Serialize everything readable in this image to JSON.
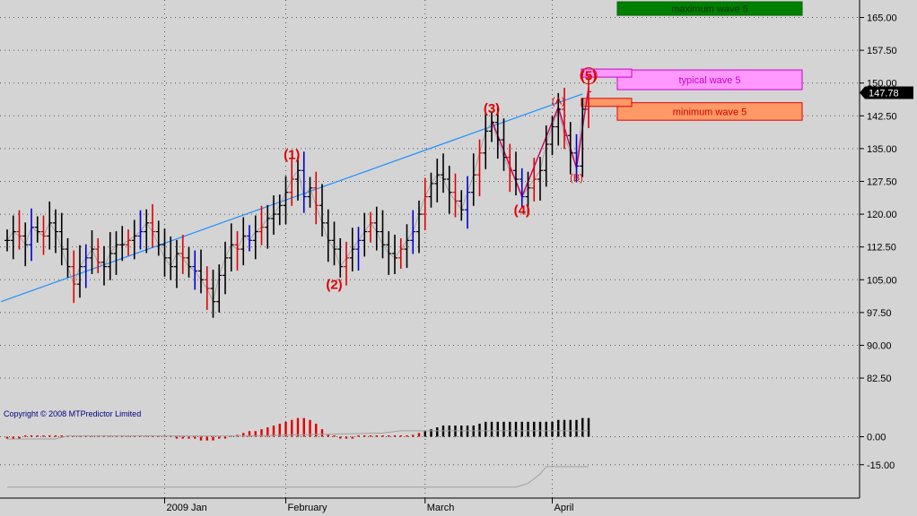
{
  "copyright": "Copyright © 2008 MTPredictor Limited",
  "last_price_label": "147.78",
  "colors": {
    "background": "#d4d4d4",
    "bar_up": "#e00000",
    "bar_down": "#0000cc",
    "bar_neutral": "#000000",
    "trendline": "#1e90ff",
    "wave_line": "#cc0066",
    "label_red": "#e00000",
    "max_box": "#008000",
    "typical_box": "#ff99ff",
    "min_box": "#ff9966"
  },
  "chart_data": {
    "type": "ohlc",
    "price_axis": {
      "ticks": [
        "165.00",
        "157.50",
        "150.00",
        "142.50",
        "135.00",
        "127.50",
        "120.00",
        "112.50",
        "105.00",
        "97.50",
        "90.00",
        "82.50"
      ],
      "range": [
        78,
        169
      ]
    },
    "indicator_axis": {
      "ticks": [
        "0.00",
        "-15.00"
      ],
      "range": [
        -30,
        18
      ]
    },
    "x_labels": [
      {
        "label": "2009 Jan",
        "bar": 26
      },
      {
        "label": "February",
        "bar": 46
      },
      {
        "label": "March",
        "bar": 69
      },
      {
        "label": "April",
        "bar": 90
      }
    ],
    "close_series": [
      114,
      116,
      115,
      113,
      117,
      116,
      115,
      118,
      116,
      112,
      108,
      104,
      108,
      110,
      112,
      109,
      108,
      111,
      113,
      113,
      114,
      115,
      116,
      118,
      116,
      113,
      110,
      108,
      111,
      110,
      108,
      107,
      105,
      103,
      100,
      106,
      110,
      113,
      112,
      115,
      114,
      116,
      117,
      119,
      120,
      122,
      125,
      128,
      130,
      124,
      126,
      122,
      118,
      114,
      112,
      108,
      110,
      112,
      114,
      116,
      118,
      116,
      113,
      111,
      110,
      112,
      114,
      116,
      120,
      124,
      127,
      129,
      128,
      125,
      123,
      121,
      125,
      129,
      134,
      139,
      141,
      137,
      133,
      130,
      128,
      124,
      126,
      128,
      130,
      136,
      140,
      144,
      138,
      134,
      131,
      144,
      148
    ],
    "waves": [
      {
        "label": "(1)",
        "price": 131.0
      },
      {
        "label": "(2)",
        "price": 107.0
      },
      {
        "label": "(3)",
        "price": 141.5
      },
      {
        "label": "(4)",
        "price": 124.0
      },
      {
        "label": "(A)",
        "price": 144.5
      },
      {
        "label": "(B)",
        "price": 130.5
      },
      {
        "label": "(5)",
        "price": 149.0
      }
    ],
    "targets": [
      {
        "label": "maximum wave 5",
        "low": 165.5,
        "high": 170.5
      },
      {
        "label": "typical wave 5",
        "low": 148.5,
        "high": 153.0
      },
      {
        "label": "minimum wave 5",
        "low": 141.5,
        "high": 145.5
      }
    ],
    "indicator": [
      -1,
      -1,
      -1,
      0,
      0,
      0,
      0,
      0,
      0,
      0,
      0,
      0,
      0,
      0,
      0,
      0,
      0,
      0,
      0,
      0,
      0,
      0,
      0,
      0,
      0,
      0,
      0,
      0,
      -1,
      -1,
      -1,
      -1,
      -2,
      -2,
      -2,
      -1,
      -1,
      0,
      1,
      2,
      3,
      3,
      4,
      5,
      6,
      7,
      8,
      9,
      10,
      10,
      9,
      7,
      4,
      1,
      0,
      -1,
      -1,
      -1,
      0,
      0,
      0,
      0,
      0,
      0,
      0,
      0,
      0,
      1,
      2,
      3,
      4,
      5,
      6,
      6,
      6,
      6,
      6,
      6,
      7,
      8,
      8,
      8,
      8,
      8,
      8,
      8,
      8,
      8,
      8,
      8,
      8,
      9,
      9,
      9,
      9,
      10,
      10
    ]
  }
}
